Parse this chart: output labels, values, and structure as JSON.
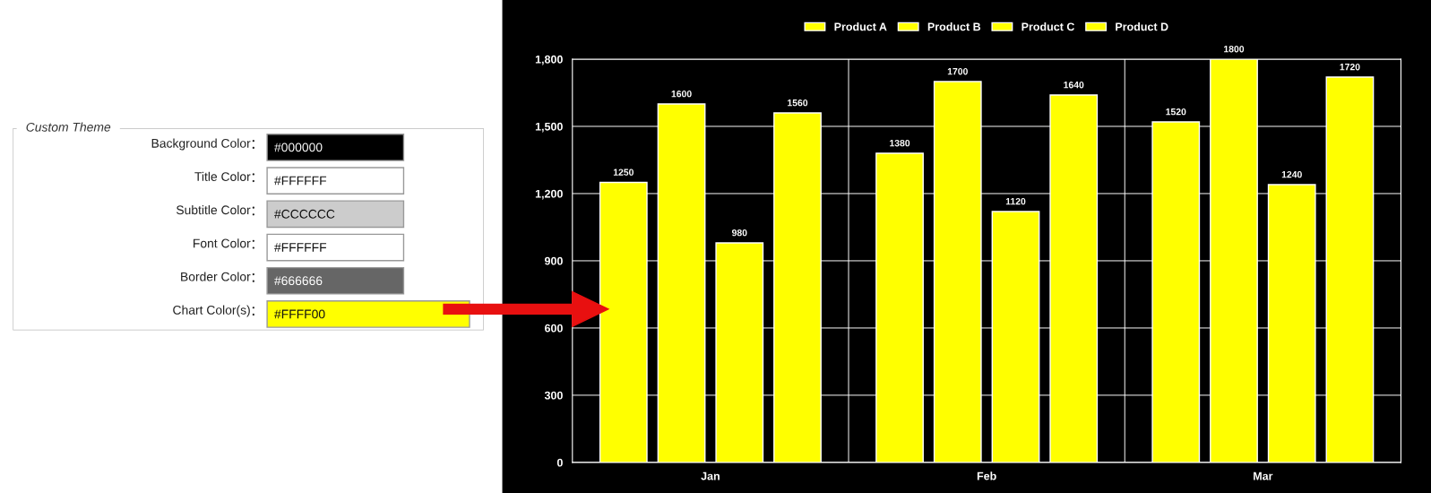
{
  "chart_data": [
    {
      "type": "other",
      "title": "Custom Theme",
      "categories": [
        "Background Color",
        "Title Color",
        "Subtitle Color",
        "Font Color",
        "Border Color",
        "Chart Color(s)"
      ],
      "value_labels": [
        "#000000",
        "#FFFFFF",
        "#CCCCCC",
        "#FFFFFF",
        "#666666",
        "#FFFF00"
      ],
      "colors": [
        "#000000",
        "#ffffff",
        "#cccccc",
        "#ffffff",
        "#666666",
        "#ffff00"
      ]
    },
    {
      "type": "bar",
      "categories": [
        "Jan",
        "Feb",
        "Mar"
      ],
      "series": [
        {
          "name": "Product A",
          "color": "#ffff00",
          "values": [
            1250,
            1380,
            1520
          ]
        },
        {
          "name": "Product B",
          "color": "#ffff00",
          "values": [
            1600,
            1700,
            1800
          ]
        },
        {
          "name": "Product C",
          "color": "#ffff00",
          "values": [
            980,
            1120,
            1240
          ]
        },
        {
          "name": "Product D",
          "color": "#ffff00",
          "values": [
            1560,
            1640,
            1720
          ]
        }
      ],
      "ylim": [
        0,
        1800
      ],
      "yticks": [
        0,
        300,
        600,
        900,
        {
          "value": 1200,
          "label": "1,200"
        },
        {
          "value": 1500,
          "label": "1,500"
        },
        {
          "value": 1800,
          "label": "1,800"
        }
      ],
      "grid": true,
      "legend": "top",
      "data_labels": true
    }
  ]
}
